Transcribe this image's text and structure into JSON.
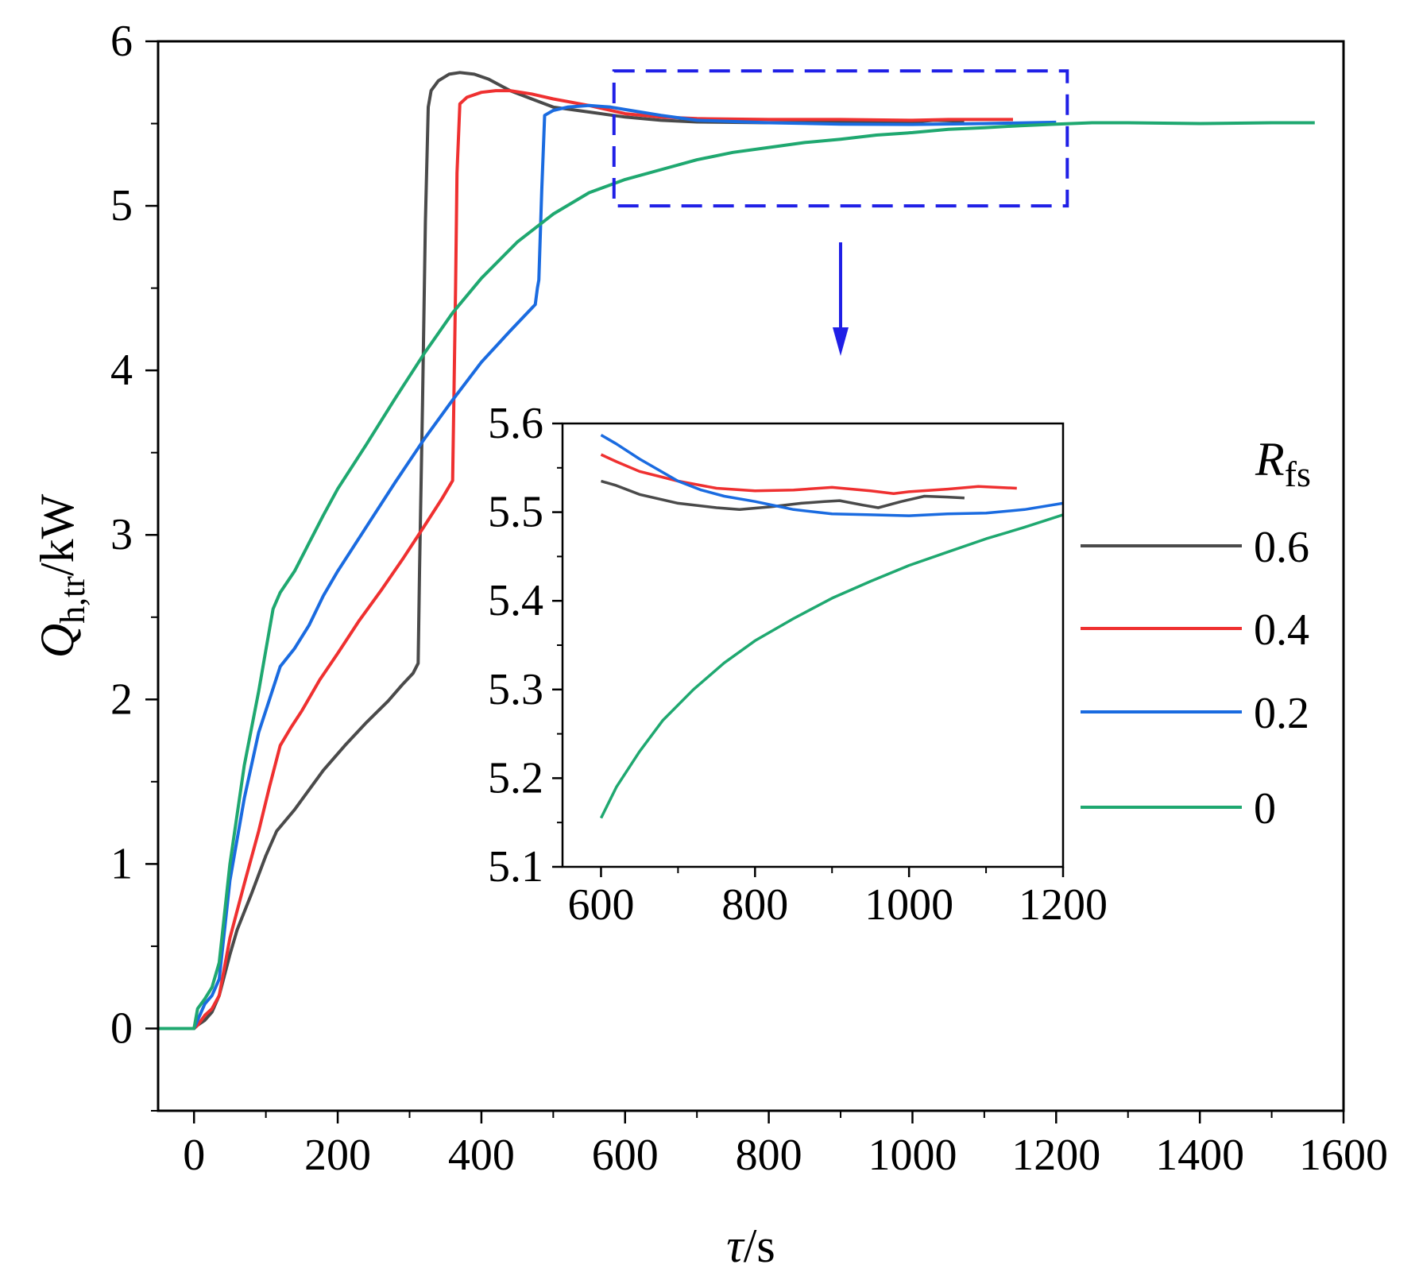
{
  "chart_data": {
    "type": "line",
    "xlabel": {
      "main": "τ",
      "unit": "/s"
    },
    "ylabel": {
      "main": "Q",
      "sub": "h,tr",
      "unit": "/kW"
    },
    "xlim": [
      -50,
      1600
    ],
    "ylim": [
      -0.5,
      6
    ],
    "xticks": [
      0,
      200,
      400,
      600,
      800,
      1000,
      1200,
      1400,
      1600
    ],
    "yticks": [
      0,
      1,
      2,
      3,
      4,
      5,
      6
    ],
    "legend": {
      "title_main": "R",
      "title_sub": "fs",
      "placement": "right",
      "entries": [
        "0.6",
        "0.4",
        "0.2",
        "0"
      ]
    },
    "highlight_box": {
      "x": [
        600,
        1200
      ],
      "y": [
        5.0,
        5.82
      ],
      "style": "dashed",
      "color": "#1f1fe6"
    },
    "series": [
      {
        "name": "0.6",
        "color": "#4a4a4a",
        "points": [
          [
            -50,
            0
          ],
          [
            0,
            0
          ],
          [
            5,
            0.02
          ],
          [
            15,
            0.05
          ],
          [
            25,
            0.1
          ],
          [
            35,
            0.2
          ],
          [
            50,
            0.45
          ],
          [
            60,
            0.6
          ],
          [
            80,
            0.82
          ],
          [
            100,
            1.05
          ],
          [
            115,
            1.2
          ],
          [
            140,
            1.33
          ],
          [
            160,
            1.45
          ],
          [
            180,
            1.57
          ],
          [
            210,
            1.72
          ],
          [
            240,
            1.86
          ],
          [
            270,
            1.99
          ],
          [
            290,
            2.09
          ],
          [
            305,
            2.16
          ],
          [
            312,
            2.22
          ],
          [
            314,
            2.8
          ],
          [
            318,
            3.8
          ],
          [
            322,
            4.9
          ],
          [
            326,
            5.6
          ],
          [
            330,
            5.7
          ],
          [
            340,
            5.76
          ],
          [
            355,
            5.8
          ],
          [
            370,
            5.81
          ],
          [
            390,
            5.8
          ],
          [
            410,
            5.77
          ],
          [
            440,
            5.7
          ],
          [
            470,
            5.65
          ],
          [
            500,
            5.6
          ],
          [
            550,
            5.57
          ],
          [
            600,
            5.54
          ],
          [
            650,
            5.52
          ],
          [
            700,
            5.51
          ],
          [
            800,
            5.505
          ],
          [
            900,
            5.51
          ],
          [
            950,
            5.505
          ],
          [
            1000,
            5.51
          ],
          [
            1030,
            5.52
          ],
          [
            1072,
            5.515
          ]
        ]
      },
      {
        "name": "0.4",
        "color": "#ef3030",
        "points": [
          [
            -50,
            0
          ],
          [
            0,
            0
          ],
          [
            5,
            0.02
          ],
          [
            15,
            0.08
          ],
          [
            25,
            0.12
          ],
          [
            35,
            0.2
          ],
          [
            50,
            0.55
          ],
          [
            70,
            0.88
          ],
          [
            90,
            1.2
          ],
          [
            105,
            1.47
          ],
          [
            120,
            1.72
          ],
          [
            135,
            1.83
          ],
          [
            150,
            1.93
          ],
          [
            175,
            2.12
          ],
          [
            200,
            2.28
          ],
          [
            230,
            2.48
          ],
          [
            260,
            2.66
          ],
          [
            290,
            2.85
          ],
          [
            320,
            3.05
          ],
          [
            345,
            3.22
          ],
          [
            360,
            3.33
          ],
          [
            362,
            3.9
          ],
          [
            364,
            4.5
          ],
          [
            366,
            5.2
          ],
          [
            370,
            5.62
          ],
          [
            380,
            5.66
          ],
          [
            400,
            5.69
          ],
          [
            420,
            5.7
          ],
          [
            440,
            5.7
          ],
          [
            470,
            5.68
          ],
          [
            500,
            5.65
          ],
          [
            550,
            5.61
          ],
          [
            600,
            5.56
          ],
          [
            650,
            5.54
          ],
          [
            700,
            5.53
          ],
          [
            800,
            5.525
          ],
          [
            900,
            5.525
          ],
          [
            1000,
            5.52
          ],
          [
            1050,
            5.525
          ],
          [
            1100,
            5.525
          ],
          [
            1140,
            5.525
          ]
        ]
      },
      {
        "name": "0.2",
        "color": "#1a6be0",
        "points": [
          [
            -50,
            0
          ],
          [
            0,
            0
          ],
          [
            5,
            0.05
          ],
          [
            15,
            0.15
          ],
          [
            25,
            0.2
          ],
          [
            35,
            0.3
          ],
          [
            50,
            0.9
          ],
          [
            70,
            1.4
          ],
          [
            90,
            1.8
          ],
          [
            105,
            2.0
          ],
          [
            120,
            2.2
          ],
          [
            140,
            2.31
          ],
          [
            160,
            2.45
          ],
          [
            180,
            2.63
          ],
          [
            200,
            2.78
          ],
          [
            240,
            3.05
          ],
          [
            280,
            3.32
          ],
          [
            320,
            3.58
          ],
          [
            360,
            3.82
          ],
          [
            400,
            4.05
          ],
          [
            440,
            4.24
          ],
          [
            475,
            4.4
          ],
          [
            478,
            4.5
          ],
          [
            480,
            4.55
          ],
          [
            484,
            5.1
          ],
          [
            488,
            5.55
          ],
          [
            500,
            5.58
          ],
          [
            520,
            5.6
          ],
          [
            550,
            5.61
          ],
          [
            580,
            5.6
          ],
          [
            600,
            5.585
          ],
          [
            650,
            5.55
          ],
          [
            700,
            5.52
          ],
          [
            800,
            5.505
          ],
          [
            900,
            5.497
          ],
          [
            1000,
            5.495
          ],
          [
            1100,
            5.5
          ],
          [
            1200,
            5.508
          ]
        ]
      },
      {
        "name": "0",
        "color": "#1fa870",
        "points": [
          [
            -50,
            0
          ],
          [
            0,
            0
          ],
          [
            5,
            0.12
          ],
          [
            15,
            0.18
          ],
          [
            25,
            0.25
          ],
          [
            35,
            0.4
          ],
          [
            50,
            1.0
          ],
          [
            70,
            1.6
          ],
          [
            90,
            2.05
          ],
          [
            100,
            2.3
          ],
          [
            110,
            2.55
          ],
          [
            120,
            2.65
          ],
          [
            140,
            2.78
          ],
          [
            160,
            2.95
          ],
          [
            180,
            3.12
          ],
          [
            200,
            3.28
          ],
          [
            240,
            3.55
          ],
          [
            280,
            3.83
          ],
          [
            320,
            4.1
          ],
          [
            360,
            4.35
          ],
          [
            400,
            4.56
          ],
          [
            450,
            4.78
          ],
          [
            500,
            4.95
          ],
          [
            550,
            5.08
          ],
          [
            600,
            5.16
          ],
          [
            650,
            5.22
          ],
          [
            700,
            5.28
          ],
          [
            750,
            5.325
          ],
          [
            800,
            5.355
          ],
          [
            850,
            5.385
          ],
          [
            900,
            5.405
          ],
          [
            950,
            5.43
          ],
          [
            1000,
            5.445
          ],
          [
            1050,
            5.465
          ],
          [
            1100,
            5.475
          ],
          [
            1150,
            5.487
          ],
          [
            1200,
            5.497
          ],
          [
            1250,
            5.505
          ],
          [
            1300,
            5.505
          ],
          [
            1400,
            5.5
          ],
          [
            1500,
            5.505
          ],
          [
            1560,
            5.505
          ]
        ]
      }
    ],
    "inset": {
      "xlim": [
        550,
        1200
      ],
      "ylim": [
        5.1,
        5.6
      ],
      "xticks": [
        600,
        800,
        1000,
        1200
      ],
      "yticks": [
        5.1,
        5.2,
        5.3,
        5.4,
        5.5,
        5.6
      ],
      "series": [
        {
          "name": "0.6",
          "color": "#4a4a4a",
          "points": [
            [
              600,
              5.535
            ],
            [
              620,
              5.53
            ],
            [
              650,
              5.52
            ],
            [
              700,
              5.51
            ],
            [
              750,
              5.505
            ],
            [
              780,
              5.503
            ],
            [
              820,
              5.506
            ],
            [
              860,
              5.51
            ],
            [
              890,
              5.512
            ],
            [
              910,
              5.513
            ],
            [
              940,
              5.508
            ],
            [
              960,
              5.505
            ],
            [
              990,
              5.512
            ],
            [
              1020,
              5.518
            ],
            [
              1050,
              5.517
            ],
            [
              1072,
              5.516
            ]
          ]
        },
        {
          "name": "0.4",
          "color": "#ef3030",
          "points": [
            [
              600,
              5.565
            ],
            [
              620,
              5.557
            ],
            [
              650,
              5.546
            ],
            [
              700,
              5.535
            ],
            [
              750,
              5.527
            ],
            [
              800,
              5.524
            ],
            [
              850,
              5.525
            ],
            [
              900,
              5.528
            ],
            [
              950,
              5.524
            ],
            [
              980,
              5.521
            ],
            [
              1000,
              5.523
            ],
            [
              1050,
              5.526
            ],
            [
              1090,
              5.529
            ],
            [
              1140,
              5.527
            ]
          ]
        },
        {
          "name": "0.2",
          "color": "#1a6be0",
          "points": [
            [
              600,
              5.587
            ],
            [
              620,
              5.577
            ],
            [
              650,
              5.56
            ],
            [
              680,
              5.545
            ],
            [
              700,
              5.535
            ],
            [
              730,
              5.525
            ],
            [
              760,
              5.518
            ],
            [
              800,
              5.512
            ],
            [
              850,
              5.503
            ],
            [
              900,
              5.498
            ],
            [
              950,
              5.497
            ],
            [
              1000,
              5.496
            ],
            [
              1050,
              5.498
            ],
            [
              1100,
              5.499
            ],
            [
              1150,
              5.503
            ],
            [
              1200,
              5.51
            ]
          ]
        },
        {
          "name": "0",
          "color": "#1fa870",
          "points": [
            [
              600,
              5.155
            ],
            [
              620,
              5.19
            ],
            [
              650,
              5.23
            ],
            [
              680,
              5.265
            ],
            [
              720,
              5.3
            ],
            [
              760,
              5.33
            ],
            [
              800,
              5.355
            ],
            [
              850,
              5.38
            ],
            [
              900,
              5.403
            ],
            [
              950,
              5.422
            ],
            [
              1000,
              5.44
            ],
            [
              1050,
              5.455
            ],
            [
              1100,
              5.47
            ],
            [
              1150,
              5.483
            ],
            [
              1200,
              5.497
            ]
          ]
        }
      ]
    }
  }
}
